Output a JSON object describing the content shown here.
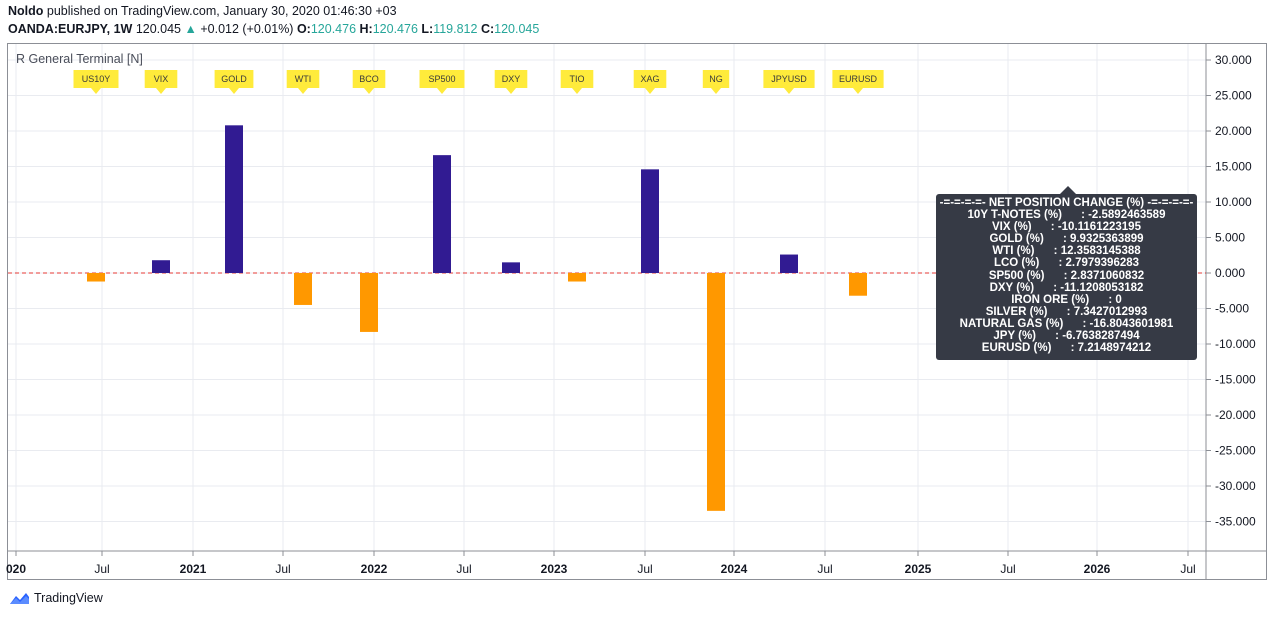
{
  "header": {
    "author": "Noldo",
    "published_text": "published on TradingView.com, January 30, 2020 01:46:30 +03",
    "symbol": "OANDA:EURJPY, 1W",
    "price": "120.045",
    "change_arrow": "▲",
    "change": "+0.012 (+0.01%)",
    "open_label": "O:",
    "open": "120.476",
    "high_label": "H:",
    "high": "120.476",
    "low_label": "L:",
    "low": "119.812",
    "close_label": "C:",
    "close": "120.045"
  },
  "indicator_title": "R General Terminal [N]",
  "tooltip": {
    "lines": [
      "-=-=-=-=- NET POSITION CHANGE (%) -=-=-=-=-",
      "10Y T-NOTES (%)      : -2.5892463589",
      "VIX (%)      : -10.1161223195",
      "GOLD (%)      : 9.9325363899",
      "WTI (%)      : 12.3583145388",
      "LCO (%)      : 2.7979396283",
      "SP500 (%)      : 2.8371060832",
      "DXY (%)      : -11.1208053182",
      "IRON ORE (%)      : 0",
      "SILVER (%)      : 7.3427012993",
      "NATURAL GAS (%)      : -16.8043601981",
      "JPY (%)      : -6.7638287494",
      "EURUSD (%)      : 7.2148974212"
    ]
  },
  "footer": {
    "brand": "TradingView"
  },
  "colors": {
    "positive": "#311b92",
    "negative": "#ff9800",
    "zero_line": "#e53935",
    "flag": "#ffeb3b",
    "grid": "#e9ebf0"
  },
  "chart_data": {
    "type": "bar",
    "categories": [
      "US10Y",
      "VIX",
      "GOLD",
      "WTI",
      "BCO",
      "SP500",
      "DXY",
      "TIO",
      "XAG",
      "NG",
      "JPYUSD",
      "EURUSD"
    ],
    "values": [
      -1.2,
      1.8,
      20.8,
      -4.5,
      -8.3,
      16.6,
      1.5,
      -1.2,
      14.6,
      -33.5,
      2.6,
      -3.2
    ],
    "ylim": [
      -39,
      32
    ],
    "yticks": [
      "30.000",
      "25.000",
      "20.000",
      "15.000",
      "10.000",
      "5.000",
      "0.000",
      "-5.000",
      "-10.000",
      "-15.000",
      "-20.000",
      "-25.000",
      "-30.000",
      "-35.000"
    ],
    "ytick_values": [
      30,
      25,
      20,
      15,
      10,
      5,
      0,
      -5,
      -10,
      -15,
      -20,
      -25,
      -30,
      -35
    ],
    "xticks": [
      "020",
      "Jul",
      "2021",
      "Jul",
      "2022",
      "Jul",
      "2023",
      "Jul",
      "2024",
      "Jul",
      "2025",
      "Jul",
      "2026",
      "Jul"
    ],
    "xticks_bold": [
      true,
      false,
      true,
      false,
      true,
      false,
      true,
      false,
      true,
      false,
      true,
      false,
      true,
      false
    ],
    "grid": true,
    "zero_line": "dashed"
  }
}
